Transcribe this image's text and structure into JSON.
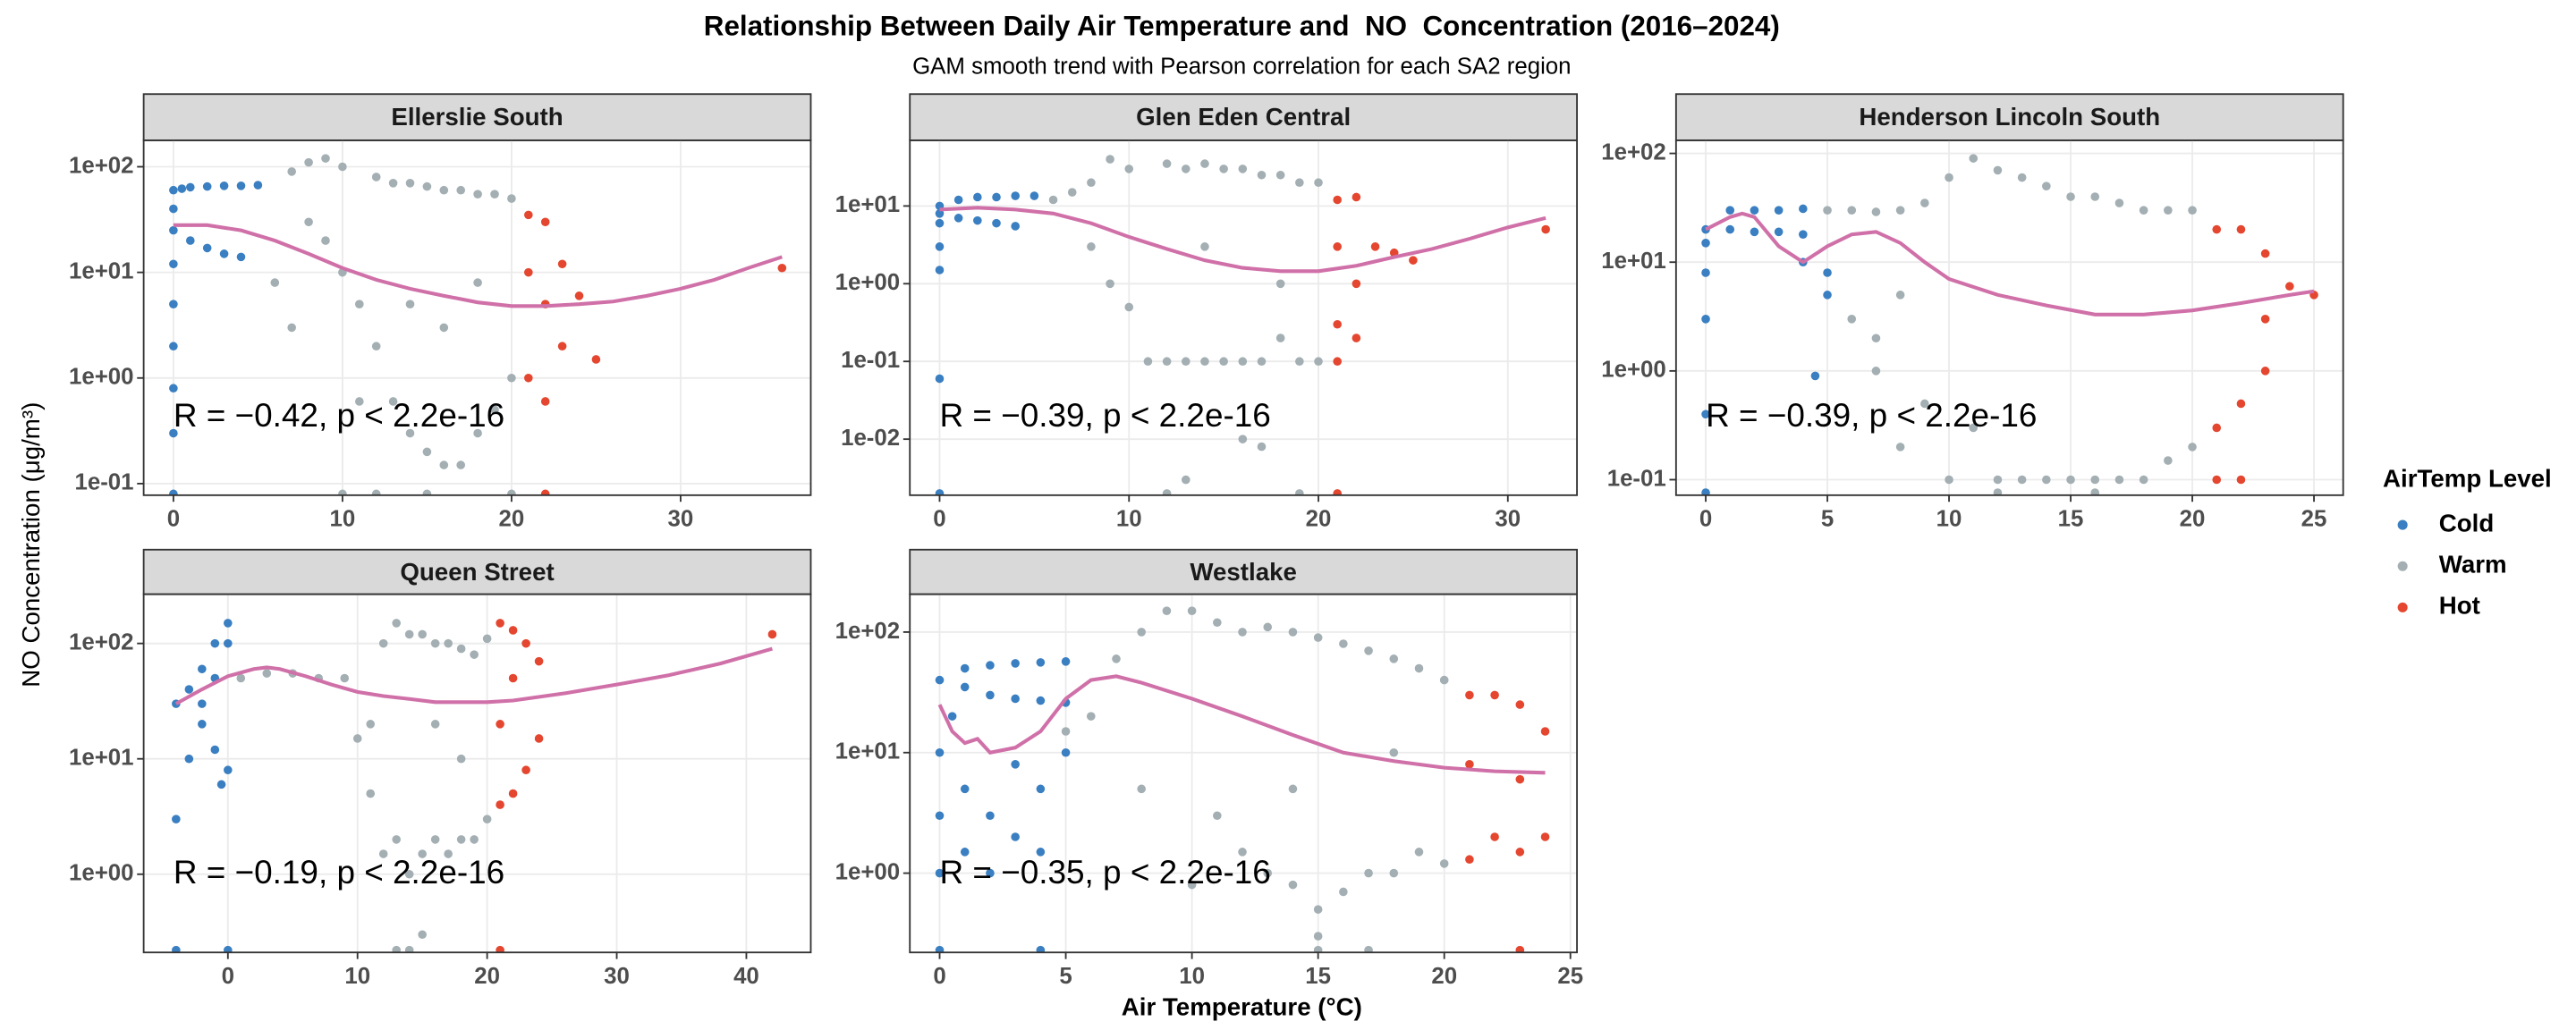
{
  "title": "Relationship Between Daily Air Temperature and  NO  Concentration (2016–2024)",
  "subtitle": "GAM smooth trend with Pearson correlation for each SA2 region",
  "x_label": "Air Temperature (°C)",
  "y_label": "NO Concentration (μg/m³)",
  "legend": {
    "title": "AirTemp Level",
    "position": "right",
    "series": [
      {
        "name": "Cold",
        "color": "#3a7fc1"
      },
      {
        "name": "Warm",
        "color": "#a3afb3"
      },
      {
        "name": "Hot",
        "color": "#e4462f"
      }
    ]
  },
  "chart_data": [
    {
      "type": "scatter",
      "title": "Ellerslie South",
      "log_y": true,
      "grid": true,
      "annotation": "R = −0.42, p < 2.2e-16",
      "xlim": [
        -1.76,
        37.7
      ],
      "ylim": [
        0.0777,
        178
      ],
      "xticks": [
        0,
        10,
        20,
        30
      ],
      "yticks": [
        {
          "value": 0.1,
          "label": "1e-01"
        },
        {
          "value": 1,
          "label": "1e+00"
        },
        {
          "value": 10,
          "label": "1e+01"
        },
        {
          "value": 100,
          "label": "1e+02"
        }
      ],
      "series": [
        {
          "x": [
            0,
            0,
            0,
            0,
            0,
            0,
            0,
            0,
            0.5,
            1,
            2,
            3,
            4,
            5,
            1,
            2,
            3,
            4,
            0
          ],
          "values": [
            60,
            40,
            25,
            12,
            5,
            2,
            0.8,
            0.3,
            62,
            64,
            65,
            66,
            66,
            67,
            20,
            17,
            15,
            14,
            0.08
          ]
        },
        {
          "x": [
            7,
            8,
            9,
            10,
            8,
            9,
            10,
            6,
            7,
            11,
            12,
            12,
            13,
            13,
            14,
            14,
            15,
            15,
            16,
            16,
            17,
            17,
            18,
            18,
            19,
            19,
            20,
            20,
            14,
            16,
            18,
            10,
            15,
            20,
            12,
            11
          ],
          "values": [
            90,
            110,
            120,
            100,
            30,
            20,
            10,
            8,
            3,
            5,
            80,
            2,
            70,
            0.6,
            70,
            0.3,
            65,
            0.2,
            60,
            0.15,
            60,
            0.15,
            55,
            0.3,
            55,
            0.5,
            50,
            1,
            5,
            3,
            8,
            0.08,
            0.08,
            0.08,
            0.08,
            0.6
          ]
        },
        {
          "x": [
            21,
            21,
            22,
            22,
            23,
            23,
            24,
            25,
            36,
            22,
            21,
            22
          ],
          "values": [
            35,
            1,
            30,
            0.6,
            12,
            2,
            6,
            1.5,
            11,
            0.08,
            10,
            5
          ]
        }
      ],
      "trend": {
        "color": "#d070a8",
        "x": [
          0,
          2,
          4,
          6,
          8,
          10,
          12,
          14,
          16,
          18,
          20,
          22,
          24,
          26,
          28,
          30,
          32,
          34,
          36
        ],
        "values": [
          28,
          28,
          25,
          20,
          15,
          11,
          8.5,
          7,
          6,
          5.2,
          4.8,
          4.8,
          5,
          5.3,
          6,
          7,
          8.5,
          11,
          14
        ]
      }
    },
    {
      "type": "scatter",
      "title": "Glen Eden Central",
      "log_y": true,
      "grid": true,
      "annotation": "R = −0.39, p < 2.2e-16",
      "xlim": [
        -1.57,
        33.65
      ],
      "ylim": [
        0.0019,
        70
      ],
      "xticks": [
        0,
        10,
        20,
        30
      ],
      "yticks": [
        {
          "value": 0.01,
          "label": "1e-02"
        },
        {
          "value": 0.1,
          "label": "1e-01"
        },
        {
          "value": 1,
          "label": "1e+00"
        },
        {
          "value": 10,
          "label": "1e+01"
        }
      ],
      "series": [
        {
          "x": [
            0,
            0,
            0,
            0,
            0,
            0,
            0,
            1,
            2,
            3,
            4,
            5,
            1,
            2,
            3,
            4
          ],
          "values": [
            10,
            8,
            6,
            3,
            1.5,
            0.06,
            0.002,
            12,
            13,
            13,
            13.5,
            13.5,
            7,
            6.5,
            6,
            5.5
          ]
        },
        {
          "x": [
            6,
            7,
            8,
            9,
            10,
            8,
            9,
            10,
            11,
            12,
            12,
            13,
            13,
            14,
            14,
            15,
            15,
            16,
            16,
            17,
            17,
            18,
            18,
            19,
            19,
            20,
            20,
            16,
            17,
            12,
            19,
            14,
            18,
            13
          ],
          "values": [
            12,
            15,
            20,
            40,
            30,
            3,
            1,
            0.5,
            0.1,
            35,
            0.1,
            30,
            0.1,
            35,
            0.1,
            30,
            0.1,
            30,
            0.1,
            25,
            0.1,
            25,
            0.2,
            20,
            0.1,
            20,
            0.1,
            0.01,
            0.008,
            0.002,
            0.002,
            3,
            1,
            0.003
          ]
        },
        {
          "x": [
            21,
            21,
            22,
            22,
            21,
            22,
            23,
            24,
            25,
            32,
            21,
            21
          ],
          "values": [
            12,
            0.3,
            13,
            0.2,
            3,
            1,
            3,
            2.5,
            2,
            5,
            0.002,
            0.1
          ]
        }
      ],
      "trend": {
        "color": "#d070a8",
        "x": [
          0,
          2,
          4,
          6,
          8,
          10,
          12,
          14,
          16,
          18,
          20,
          22,
          24,
          26,
          28,
          30,
          32
        ],
        "values": [
          9,
          9.5,
          9,
          8,
          6,
          4,
          2.8,
          2,
          1.6,
          1.45,
          1.45,
          1.7,
          2.2,
          2.8,
          3.8,
          5.3,
          7
        ]
      }
    },
    {
      "type": "scatter",
      "title": "Henderson Lincoln South",
      "log_y": true,
      "grid": true,
      "annotation": "R = −0.39, p < 2.2e-16",
      "xlim": [
        -1.22,
        26.2
      ],
      "ylim": [
        0.072,
        132
      ],
      "xticks": [
        0,
        5,
        10,
        15,
        20,
        25
      ],
      "yticks": [
        {
          "value": 0.1,
          "label": "1e-01"
        },
        {
          "value": 1,
          "label": "1e+00"
        },
        {
          "value": 10,
          "label": "1e+01"
        },
        {
          "value": 100,
          "label": "1e+02"
        }
      ],
      "series": [
        {
          "x": [
            0,
            0,
            0,
            0,
            0,
            0,
            1,
            2,
            3,
            4,
            1,
            2,
            3,
            4,
            4.5,
            5,
            5,
            4
          ],
          "values": [
            20,
            15,
            8,
            3,
            0.4,
            0.076,
            30,
            30,
            30,
            31,
            20,
            19,
            19,
            18,
            0.9,
            8,
            5,
            10
          ]
        },
        {
          "x": [
            5,
            6,
            7,
            8,
            9,
            10,
            11,
            12,
            13,
            14,
            15,
            16,
            17,
            18,
            19,
            20,
            6,
            7,
            8,
            9,
            10,
            11,
            12,
            13,
            14,
            15,
            16,
            17,
            18,
            19,
            20,
            7,
            8,
            12,
            16
          ],
          "values": [
            30,
            30,
            29,
            30,
            35,
            60,
            90,
            70,
            60,
            50,
            40,
            40,
            35,
            30,
            30,
            30,
            3,
            2,
            0.2,
            0.5,
            0.1,
            0.3,
            0.1,
            0.1,
            0.1,
            0.1,
            0.1,
            0.1,
            0.1,
            0.15,
            0.2,
            1,
            5,
            0.076,
            0.076
          ]
        },
        {
          "x": [
            21,
            21,
            22,
            22,
            23,
            23,
            24,
            25,
            21,
            22,
            23
          ],
          "values": [
            20,
            0.3,
            20,
            0.5,
            12,
            1,
            6,
            5,
            0.1,
            0.1,
            3
          ]
        }
      ],
      "trend": {
        "color": "#d070a8",
        "x": [
          0,
          1,
          1.5,
          2,
          3,
          4,
          5,
          6,
          7,
          8,
          9,
          10,
          12,
          14,
          16,
          18,
          20,
          22,
          24,
          25
        ],
        "values": [
          20,
          26,
          28,
          26,
          14,
          10,
          14,
          18,
          19,
          15,
          10,
          7,
          5,
          4,
          3.3,
          3.3,
          3.6,
          4.2,
          5,
          5.4
        ]
      }
    },
    {
      "type": "scatter",
      "title": "Queen Street",
      "log_y": true,
      "grid": true,
      "annotation": "R = −0.19, p < 2.2e-16",
      "xlim": [
        -6.5,
        44.97
      ],
      "ylim": [
        0.21,
        267
      ],
      "xticks": [
        0,
        10,
        20,
        30,
        40
      ],
      "yticks": [
        {
          "value": 1,
          "label": "1e+00"
        },
        {
          "value": 10,
          "label": "1e+01"
        },
        {
          "value": 100,
          "label": "1e+02"
        }
      ],
      "series": [
        {
          "x": [
            -4,
            -3,
            -2,
            -1,
            0,
            0,
            -1,
            -2,
            -3,
            -4,
            -0.5,
            0,
            -1,
            -2,
            0,
            -4
          ],
          "values": [
            30,
            40,
            60,
            100,
            150,
            100,
            50,
            20,
            10,
            3,
            6,
            8,
            12,
            30,
            0.22,
            0.22
          ]
        },
        {
          "x": [
            1,
            3,
            5,
            7,
            9,
            10,
            11,
            12,
            12,
            13,
            13,
            14,
            14,
            15,
            15,
            16,
            16,
            17,
            17,
            18,
            18,
            19,
            19,
            20,
            20,
            15,
            13,
            14,
            11,
            16,
            18
          ],
          "values": [
            50,
            55,
            55,
            50,
            50,
            15,
            20,
            100,
            1.5,
            150,
            2,
            120,
            1,
            120,
            1.5,
            100,
            2,
            100,
            1.5,
            90,
            2,
            80,
            2,
            110,
            3,
            0.3,
            0.22,
            0.22,
            5,
            20,
            10
          ]
        },
        {
          "x": [
            21,
            21,
            22,
            22,
            23,
            23,
            24,
            24,
            21,
            22,
            42,
            21
          ],
          "values": [
            150,
            4,
            130,
            5,
            100,
            8,
            70,
            15,
            20,
            50,
            120,
            0.22
          ]
        }
      ],
      "trend": {
        "color": "#d070a8",
        "x": [
          -4,
          -2,
          0,
          2,
          3,
          4,
          6,
          8,
          10,
          12,
          14,
          16,
          18,
          20,
          22,
          26,
          30,
          34,
          38,
          42
        ],
        "values": [
          30,
          40,
          52,
          60,
          62,
          60,
          52,
          44,
          38,
          35,
          33,
          31,
          31,
          31,
          32,
          37,
          44,
          53,
          67,
          90
        ]
      }
    },
    {
      "type": "scatter",
      "title": "Westlake",
      "log_y": true,
      "grid": true,
      "annotation": "R = −0.35, p < 2.2e-16",
      "xlim": [
        -1.18,
        25.26
      ],
      "ylim": [
        0.22,
        206
      ],
      "xticks": [
        0,
        5,
        10,
        15,
        20,
        25
      ],
      "yticks": [
        {
          "value": 1,
          "label": "1e+00"
        },
        {
          "value": 10,
          "label": "1e+01"
        },
        {
          "value": 100,
          "label": "1e+02"
        }
      ],
      "series": [
        {
          "x": [
            0,
            1,
            2,
            3,
            4,
            5,
            1,
            2,
            3,
            4,
            5,
            0,
            0,
            0,
            1,
            1,
            2,
            2,
            3,
            3,
            4,
            4,
            5,
            0.5,
            0,
            4
          ],
          "values": [
            40,
            50,
            53,
            55,
            56,
            57,
            35,
            30,
            28,
            27,
            26,
            10,
            3,
            1,
            5,
            1.5,
            3,
            1,
            8,
            2,
            5,
            1.5,
            10,
            20,
            0.23,
            0.23
          ]
        },
        {
          "x": [
            5,
            6,
            7,
            8,
            9,
            10,
            11,
            12,
            13,
            14,
            15,
            16,
            17,
            18,
            19,
            20,
            12,
            13,
            14,
            15,
            16,
            17,
            18,
            19,
            20,
            10,
            8,
            11,
            15,
            17,
            15,
            14,
            18
          ],
          "values": [
            15,
            20,
            60,
            100,
            150,
            150,
            120,
            100,
            110,
            100,
            90,
            80,
            70,
            60,
            50,
            40,
            1.5,
            1,
            0.8,
            0.5,
            0.7,
            1,
            1,
            1.5,
            1.2,
            0.8,
            5,
            3,
            0.3,
            0.23,
            0.23,
            5,
            10
          ]
        },
        {
          "x": [
            21,
            21,
            22,
            22,
            23,
            23,
            24,
            24,
            21,
            23,
            23
          ],
          "values": [
            30,
            1.3,
            30,
            2,
            25,
            1.5,
            15,
            2,
            8,
            6,
            0.23
          ]
        }
      ],
      "trend": {
        "color": "#d070a8",
        "x": [
          0,
          0.5,
          1,
          1.5,
          2,
          3,
          4,
          5,
          6,
          7,
          8,
          10,
          12,
          14,
          16,
          18,
          20,
          22,
          24
        ],
        "values": [
          25,
          15,
          12,
          13,
          10,
          11,
          15,
          28,
          40,
          43,
          38,
          28,
          20,
          14,
          10,
          8.5,
          7.5,
          7,
          6.8
        ]
      }
    }
  ]
}
